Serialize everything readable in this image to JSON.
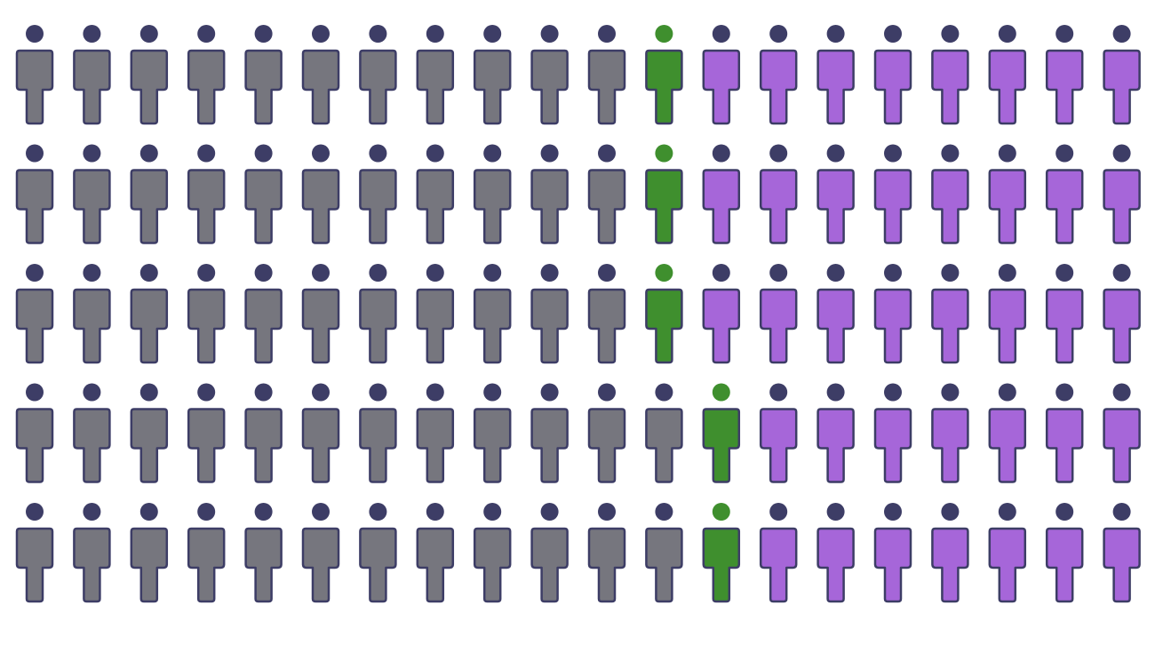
{
  "chart_data": {
    "type": "pictogram",
    "rows": 5,
    "columns": 20,
    "icon": "person-icon",
    "grid": false,
    "legend": "none",
    "colors": {
      "grey": "#76767e",
      "green": "#3f8f2e",
      "purple": "#a666d9",
      "outline": "#3d3d66"
    },
    "row_counts": [
      {
        "grey": 11,
        "green": 1,
        "purple": 8
      },
      {
        "grey": 11,
        "green": 1,
        "purple": 8
      },
      {
        "grey": 11,
        "green": 1,
        "purple": 8
      },
      {
        "grey": 12,
        "green": 1,
        "purple": 7
      },
      {
        "grey": 12,
        "green": 1,
        "purple": 7
      }
    ],
    "totals": {
      "grey": 57,
      "green": 5,
      "purple": 38
    }
  }
}
